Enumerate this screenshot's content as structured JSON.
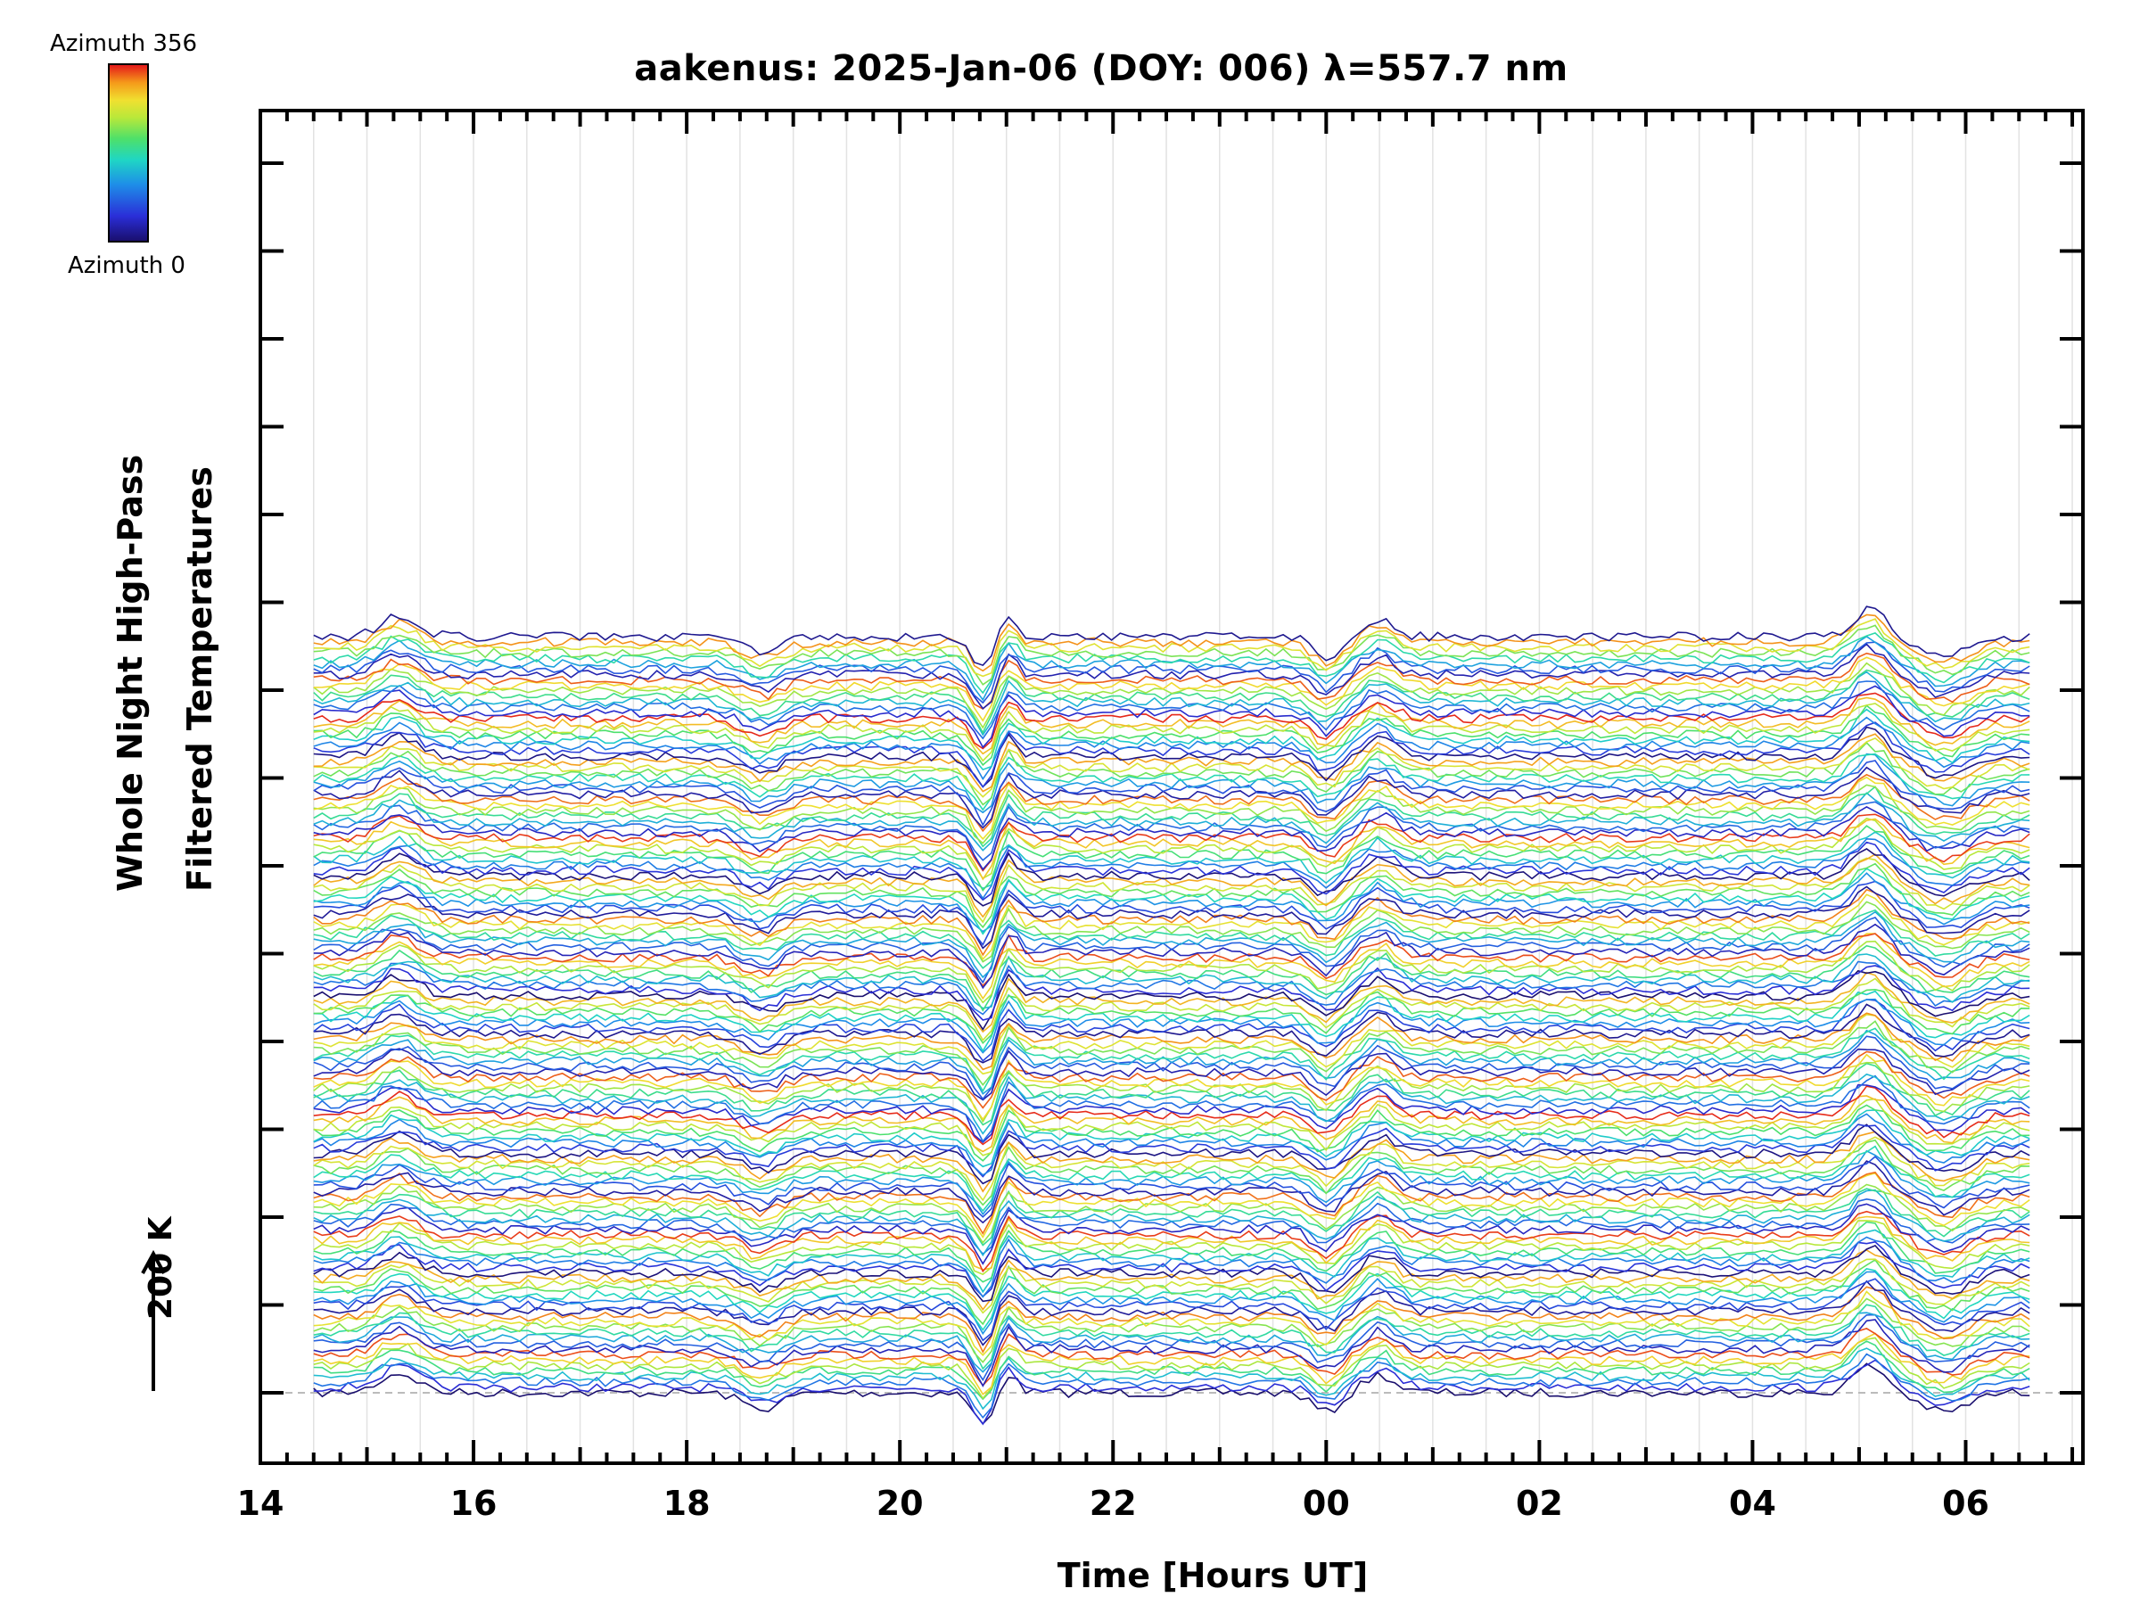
{
  "chart_data": {
    "type": "line",
    "title": "aakenus: 2025-Jan-06 (DOY: 006) λ=557.7 nm",
    "xlabel": "Time [Hours UT]",
    "ylabel_lines": [
      "Whole Night High-Pass",
      "Filtered Temperatures"
    ],
    "scale_label": "200 K",
    "x_tick_labels": [
      "14",
      "16",
      "18",
      "20",
      "22",
      "00",
      "02",
      "04",
      "06"
    ],
    "x_range_hours": [
      14.0,
      31.1
    ],
    "data_time_range_hours": [
      14.5,
      30.6
    ],
    "colorbar": {
      "top_label": "Azimuth 356",
      "bottom_label": "Azimuth 0",
      "colormap": "rainbow (blue-to-red)"
    },
    "grid": "vertical lines at half-hours",
    "note": "Stacked high-pass filtered temperature time series, one line per azimuth, color-coded by azimuth."
  },
  "colors": {
    "low": "#1a0f6e",
    "mid": "#4de06a",
    "high": "#e41a1a",
    "axis": "#000000",
    "grid": "#dddddd"
  }
}
